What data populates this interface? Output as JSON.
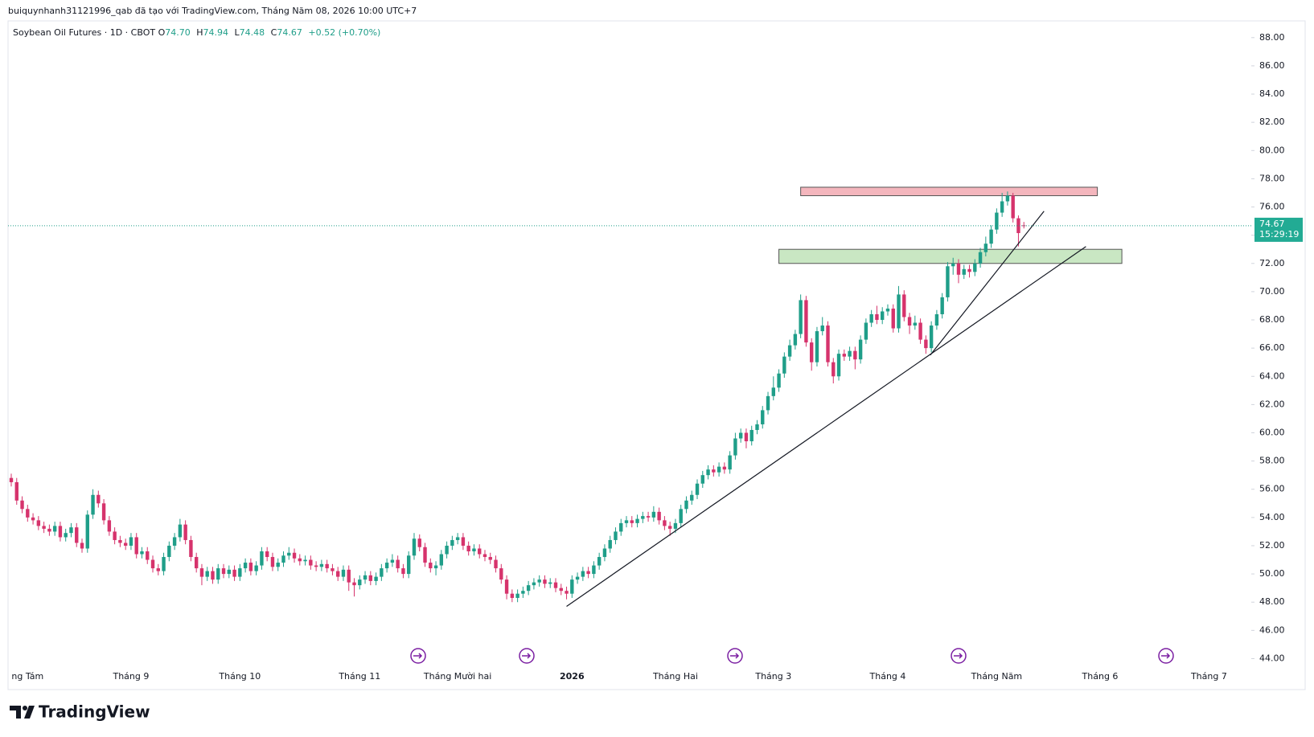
{
  "header": {
    "credit": "buiquynhanh31121996_qab đã tạo với TradingView.com, Tháng Năm 08, 2026 10:00 UTC+7"
  },
  "brand": "TradingView",
  "chart_data": {
    "type": "candlestick",
    "title": "Soybean Oil Futures · 1D · CBOT",
    "ohlc_letters": [
      "O",
      "H",
      "L",
      "C"
    ],
    "legend_values": [
      "74.70",
      "74.94",
      "74.48",
      "74.67"
    ],
    "change_label": "+0.52 (+0.70%)",
    "countdown": "15:29:19",
    "up_color": "#1f9e89",
    "down_color": "#d6336c",
    "ylim": [
      43.4,
      88.9
    ],
    "yticks": [
      {
        "value": 44,
        "label": "44.00"
      },
      {
        "value": 46,
        "label": "46.00"
      },
      {
        "value": 48,
        "label": "48.00"
      },
      {
        "value": 50,
        "label": "50.00"
      },
      {
        "value": 52,
        "label": "52.00"
      },
      {
        "value": 54,
        "label": "54.00"
      },
      {
        "value": 56,
        "label": "56.00"
      },
      {
        "value": 58,
        "label": "58.00"
      },
      {
        "value": 60,
        "label": "60.00"
      },
      {
        "value": 62,
        "label": "62.00"
      },
      {
        "value": 64,
        "label": "64.00"
      },
      {
        "value": 66,
        "label": "66.00"
      },
      {
        "value": 68,
        "label": "68.00"
      },
      {
        "value": 70,
        "label": "70.00"
      },
      {
        "value": 72,
        "label": "72.00"
      },
      {
        "value": 74,
        "label": "74.00"
      },
      {
        "value": 76,
        "label": "76.00"
      },
      {
        "value": 78,
        "label": "78.00"
      },
      {
        "value": 80,
        "label": "80.00"
      },
      {
        "value": 82,
        "label": "82.00"
      },
      {
        "value": 84,
        "label": "84.00"
      },
      {
        "value": 86,
        "label": "86.00"
      },
      {
        "value": 88,
        "label": "88.00"
      }
    ],
    "categories": [
      null,
      null,
      null,
      "ng Tám",
      null,
      null,
      null,
      null,
      null,
      null,
      null,
      null,
      null,
      null,
      null,
      null,
      null,
      null,
      null,
      null,
      null,
      null,
      "Tháng 9",
      null,
      null,
      null,
      null,
      null,
      null,
      null,
      null,
      null,
      null,
      null,
      null,
      null,
      null,
      null,
      null,
      null,
      null,
      null,
      "Tháng 10",
      null,
      null,
      null,
      null,
      null,
      null,
      null,
      null,
      null,
      null,
      null,
      null,
      null,
      null,
      null,
      null,
      null,
      null,
      null,
      null,
      null,
      "Tháng 11",
      null,
      null,
      null,
      null,
      null,
      null,
      null,
      null,
      null,
      null,
      null,
      null,
      null,
      null,
      null,
      null,
      null,
      "Tháng Mười hai",
      null,
      null,
      null,
      null,
      null,
      null,
      null,
      null,
      null,
      null,
      null,
      null,
      null,
      null,
      null,
      null,
      null,
      null,
      null,
      null,
      "2026",
      null,
      null,
      null,
      null,
      null,
      null,
      null,
      null,
      null,
      null,
      null,
      null,
      null,
      null,
      null,
      null,
      null,
      null,
      "Tháng Hai",
      null,
      null,
      null,
      null,
      null,
      null,
      null,
      null,
      null,
      null,
      null,
      null,
      null,
      null,
      null,
      null,
      null,
      "Tháng 3",
      null,
      null,
      null,
      null,
      null,
      null,
      null,
      null,
      null,
      null,
      null,
      null,
      null,
      null,
      null,
      null,
      null,
      null,
      null,
      null,
      "Tháng 4",
      null,
      null,
      null,
      null,
      null,
      null,
      null,
      null,
      null,
      null,
      null,
      null,
      null,
      null,
      null,
      null,
      null,
      null,
      null,
      "Tháng Năm",
      null,
      null,
      null,
      null,
      null,
      null,
      null,
      null,
      null,
      null,
      null,
      null,
      null,
      null,
      null,
      null,
      null,
      null,
      "Tháng 6",
      null,
      null,
      null,
      null,
      null,
      null,
      null,
      null,
      null,
      null,
      null,
      null,
      null,
      null,
      null,
      null,
      null,
      null,
      null,
      "Tháng 7",
      null,
      null,
      null,
      null,
      null,
      null,
      null
    ],
    "candles": [
      [
        56.8,
        57.1,
        56.2,
        56.5
      ],
      [
        56.5,
        56.8,
        54.9,
        55.2
      ],
      [
        55.2,
        55.5,
        54.3,
        54.6
      ],
      [
        54.6,
        54.9,
        53.7,
        54.0
      ],
      [
        54.0,
        54.3,
        53.5,
        53.8
      ],
      [
        53.8,
        54.1,
        53.1,
        53.4
      ],
      [
        53.4,
        53.7,
        52.9,
        53.2
      ],
      [
        53.2,
        53.5,
        52.7,
        53.0
      ],
      [
        53.0,
        53.7,
        52.7,
        53.4
      ],
      [
        53.4,
        53.7,
        52.3,
        52.6
      ],
      [
        52.6,
        53.2,
        52.3,
        52.9
      ],
      [
        52.9,
        53.6,
        52.6,
        53.3
      ],
      [
        53.3,
        53.6,
        51.9,
        52.2
      ],
      [
        52.2,
        52.5,
        51.5,
        51.8
      ],
      [
        51.8,
        54.5,
        51.5,
        54.2
      ],
      [
        54.2,
        56.0,
        53.9,
        55.6
      ],
      [
        55.6,
        55.9,
        54.7,
        55.0
      ],
      [
        55.0,
        55.3,
        53.5,
        53.8
      ],
      [
        53.8,
        54.1,
        52.7,
        53.0
      ],
      [
        53.0,
        53.3,
        52.1,
        52.4
      ],
      [
        52.4,
        52.7,
        51.9,
        52.2
      ],
      [
        52.2,
        52.5,
        51.7,
        52.0
      ],
      [
        52.0,
        52.9,
        51.7,
        52.6
      ],
      [
        52.6,
        52.9,
        51.1,
        51.4
      ],
      [
        51.4,
        51.9,
        51.1,
        51.6
      ],
      [
        51.6,
        51.9,
        50.7,
        51.0
      ],
      [
        51.0,
        51.3,
        50.1,
        50.4
      ],
      [
        50.4,
        50.7,
        49.9,
        50.2
      ],
      [
        50.2,
        51.5,
        49.9,
        51.2
      ],
      [
        51.2,
        52.3,
        50.9,
        52.0
      ],
      [
        52.0,
        52.9,
        51.7,
        52.6
      ],
      [
        52.6,
        53.9,
        52.3,
        53.5
      ],
      [
        53.5,
        53.8,
        52.1,
        52.4
      ],
      [
        52.4,
        52.7,
        50.9,
        51.2
      ],
      [
        51.2,
        51.5,
        50.1,
        50.4
      ],
      [
        50.4,
        50.7,
        49.2,
        49.8
      ],
      [
        49.8,
        50.5,
        49.5,
        50.2
      ],
      [
        50.2,
        50.5,
        49.3,
        49.6
      ],
      [
        49.6,
        50.7,
        49.3,
        50.4
      ],
      [
        50.4,
        50.7,
        49.7,
        50.0
      ],
      [
        50.0,
        50.6,
        49.7,
        50.3
      ],
      [
        50.3,
        50.6,
        49.5,
        49.8
      ],
      [
        49.8,
        50.7,
        49.5,
        50.4
      ],
      [
        50.4,
        51.1,
        50.1,
        50.8
      ],
      [
        50.8,
        51.1,
        49.9,
        50.2
      ],
      [
        50.2,
        50.9,
        49.9,
        50.6
      ],
      [
        50.6,
        51.9,
        50.3,
        51.6
      ],
      [
        51.6,
        51.9,
        50.9,
        51.2
      ],
      [
        51.2,
        51.5,
        50.2,
        50.5
      ],
      [
        50.5,
        51.1,
        50.2,
        50.8
      ],
      [
        50.8,
        51.6,
        50.5,
        51.3
      ],
      [
        51.3,
        51.9,
        51.0,
        51.5
      ],
      [
        51.5,
        51.8,
        50.8,
        51.1
      ],
      [
        51.1,
        51.4,
        50.6,
        50.9
      ],
      [
        50.9,
        51.3,
        50.6,
        51.0
      ],
      [
        51.0,
        51.3,
        50.3,
        50.6
      ],
      [
        50.6,
        50.9,
        50.2,
        50.5
      ],
      [
        50.5,
        51.0,
        50.2,
        50.7
      ],
      [
        50.7,
        51.0,
        50.1,
        50.4
      ],
      [
        50.4,
        50.7,
        49.9,
        50.2
      ],
      [
        50.2,
        50.5,
        49.5,
        49.8
      ],
      [
        49.8,
        50.6,
        49.5,
        50.3
      ],
      [
        50.3,
        50.6,
        48.8,
        49.4
      ],
      [
        49.4,
        49.7,
        48.4,
        49.2
      ],
      [
        49.2,
        49.9,
        48.9,
        49.6
      ],
      [
        49.6,
        50.2,
        49.3,
        49.9
      ],
      [
        49.9,
        50.2,
        49.2,
        49.5
      ],
      [
        49.5,
        50.1,
        49.2,
        49.8
      ],
      [
        49.8,
        50.7,
        49.5,
        50.4
      ],
      [
        50.4,
        51.1,
        50.1,
        50.8
      ],
      [
        50.8,
        51.4,
        50.5,
        51.0
      ],
      [
        51.0,
        51.3,
        50.1,
        50.4
      ],
      [
        50.4,
        50.7,
        49.7,
        50.0
      ],
      [
        50.0,
        51.6,
        49.7,
        51.3
      ],
      [
        51.3,
        52.9,
        51.0,
        52.5
      ],
      [
        52.5,
        52.8,
        51.6,
        51.9
      ],
      [
        51.9,
        52.2,
        50.5,
        50.8
      ],
      [
        50.8,
        51.1,
        50.1,
        50.4
      ],
      [
        50.4,
        50.9,
        49.9,
        50.6
      ],
      [
        50.6,
        51.7,
        50.3,
        51.4
      ],
      [
        51.4,
        52.3,
        51.1,
        52.0
      ],
      [
        52.0,
        52.7,
        51.7,
        52.4
      ],
      [
        52.4,
        52.9,
        52.1,
        52.6
      ],
      [
        52.6,
        52.9,
        51.7,
        52.0
      ],
      [
        52.0,
        52.3,
        51.3,
        51.6
      ],
      [
        51.6,
        52.1,
        51.3,
        51.8
      ],
      [
        51.8,
        52.1,
        51.1,
        51.4
      ],
      [
        51.4,
        51.7,
        50.9,
        51.2
      ],
      [
        51.2,
        51.5,
        50.7,
        51.0
      ],
      [
        51.0,
        51.3,
        50.1,
        50.4
      ],
      [
        50.4,
        50.7,
        49.3,
        49.6
      ],
      [
        49.6,
        49.9,
        48.2,
        48.6
      ],
      [
        48.6,
        48.9,
        48.0,
        48.3
      ],
      [
        48.3,
        48.9,
        48.0,
        48.6
      ],
      [
        48.6,
        49.1,
        48.3,
        48.8
      ],
      [
        48.8,
        49.5,
        48.5,
        49.2
      ],
      [
        49.2,
        49.7,
        48.9,
        49.4
      ],
      [
        49.4,
        49.9,
        49.1,
        49.6
      ],
      [
        49.6,
        49.9,
        49.0,
        49.3
      ],
      [
        49.3,
        49.7,
        49.0,
        49.4
      ],
      [
        49.4,
        49.7,
        48.7,
        49.0
      ],
      [
        49.0,
        49.3,
        48.5,
        48.8
      ],
      [
        48.8,
        49.1,
        48.2,
        48.6
      ],
      [
        48.6,
        49.9,
        48.3,
        49.6
      ],
      [
        49.6,
        50.1,
        49.3,
        49.8
      ],
      [
        49.8,
        50.5,
        49.5,
        50.2
      ],
      [
        50.2,
        50.5,
        49.7,
        50.0
      ],
      [
        50.0,
        50.9,
        49.7,
        50.6
      ],
      [
        50.6,
        51.5,
        50.3,
        51.2
      ],
      [
        51.2,
        52.1,
        50.9,
        51.8
      ],
      [
        51.8,
        52.7,
        51.5,
        52.4
      ],
      [
        52.4,
        53.3,
        52.1,
        53.0
      ],
      [
        53.0,
        53.9,
        52.7,
        53.6
      ],
      [
        53.6,
        54.1,
        53.3,
        53.8
      ],
      [
        53.8,
        54.1,
        53.3,
        53.6
      ],
      [
        53.6,
        54.2,
        53.3,
        53.9
      ],
      [
        53.9,
        54.4,
        53.6,
        54.1
      ],
      [
        54.1,
        54.4,
        53.7,
        54.0
      ],
      [
        54.0,
        54.8,
        53.7,
        54.4
      ],
      [
        54.4,
        54.7,
        53.5,
        53.8
      ],
      [
        53.8,
        54.1,
        53.1,
        53.4
      ],
      [
        53.4,
        53.7,
        52.7,
        53.2
      ],
      [
        53.2,
        53.9,
        52.9,
        53.6
      ],
      [
        53.6,
        54.9,
        53.3,
        54.6
      ],
      [
        54.6,
        55.5,
        54.3,
        55.2
      ],
      [
        55.2,
        55.9,
        54.9,
        55.6
      ],
      [
        55.6,
        56.7,
        55.3,
        56.4
      ],
      [
        56.4,
        57.3,
        56.1,
        57.0
      ],
      [
        57.0,
        57.7,
        56.7,
        57.4
      ],
      [
        57.4,
        57.7,
        56.9,
        57.2
      ],
      [
        57.2,
        57.9,
        56.9,
        57.6
      ],
      [
        57.6,
        57.9,
        57.1,
        57.4
      ],
      [
        57.4,
        58.7,
        57.1,
        58.4
      ],
      [
        58.4,
        60.0,
        58.1,
        59.6
      ],
      [
        59.6,
        60.3,
        59.3,
        60.0
      ],
      [
        60.0,
        60.3,
        58.9,
        59.4
      ],
      [
        59.4,
        60.5,
        59.1,
        60.2
      ],
      [
        60.2,
        60.9,
        59.9,
        60.6
      ],
      [
        60.6,
        61.9,
        60.3,
        61.6
      ],
      [
        61.6,
        62.9,
        61.3,
        62.6
      ],
      [
        62.6,
        64.0,
        62.3,
        63.2
      ],
      [
        63.2,
        64.5,
        62.9,
        64.2
      ],
      [
        64.2,
        65.7,
        63.9,
        65.4
      ],
      [
        65.4,
        66.6,
        65.1,
        66.2
      ],
      [
        66.2,
        67.3,
        65.9,
        67.0
      ],
      [
        67.0,
        69.8,
        66.7,
        69.4
      ],
      [
        69.4,
        69.7,
        66.1,
        66.4
      ],
      [
        66.4,
        66.7,
        64.4,
        65.0
      ],
      [
        65.0,
        67.5,
        64.7,
        67.2
      ],
      [
        67.2,
        68.2,
        66.9,
        67.6
      ],
      [
        67.6,
        67.9,
        64.7,
        65.0
      ],
      [
        65.0,
        65.3,
        63.5,
        64.0
      ],
      [
        64.0,
        65.9,
        63.7,
        65.6
      ],
      [
        65.6,
        65.9,
        65.1,
        65.4
      ],
      [
        65.4,
        66.1,
        65.1,
        65.8
      ],
      [
        65.8,
        66.1,
        64.5,
        65.2
      ],
      [
        65.2,
        66.9,
        64.9,
        66.6
      ],
      [
        66.6,
        68.1,
        66.3,
        67.8
      ],
      [
        67.8,
        68.7,
        67.5,
        68.4
      ],
      [
        68.4,
        69.0,
        67.7,
        68.0
      ],
      [
        68.0,
        68.9,
        67.7,
        68.6
      ],
      [
        68.6,
        69.1,
        68.3,
        68.8
      ],
      [
        68.8,
        69.1,
        67.1,
        67.4
      ],
      [
        67.4,
        70.4,
        67.1,
        69.8
      ],
      [
        69.8,
        70.1,
        67.9,
        68.2
      ],
      [
        68.2,
        68.5,
        67.0,
        67.6
      ],
      [
        67.6,
        68.3,
        67.3,
        67.8
      ],
      [
        67.8,
        68.1,
        66.3,
        66.6
      ],
      [
        66.6,
        66.9,
        65.6,
        66.0
      ],
      [
        66.0,
        67.9,
        65.7,
        67.6
      ],
      [
        67.6,
        68.7,
        67.3,
        68.4
      ],
      [
        68.4,
        69.9,
        68.1,
        69.6
      ],
      [
        69.6,
        72.1,
        69.3,
        71.8
      ],
      [
        71.8,
        72.4,
        71.2,
        72.0
      ],
      [
        72.0,
        72.3,
        70.6,
        71.2
      ],
      [
        71.2,
        71.9,
        70.9,
        71.6
      ],
      [
        71.6,
        71.9,
        71.0,
        71.4
      ],
      [
        71.4,
        72.3,
        71.1,
        72.0
      ],
      [
        72.0,
        73.1,
        71.7,
        72.8
      ],
      [
        72.8,
        73.9,
        72.5,
        73.4
      ],
      [
        73.4,
        74.7,
        73.1,
        74.4
      ],
      [
        74.4,
        75.9,
        74.1,
        75.6
      ],
      [
        75.6,
        77.0,
        75.3,
        76.4
      ],
      [
        76.4,
        77.1,
        76.1,
        76.8
      ],
      [
        76.8,
        77.0,
        74.9,
        75.2
      ],
      [
        75.2,
        75.4,
        73.2,
        74.15
      ],
      [
        74.7,
        74.94,
        74.48,
        74.67
      ],
      null,
      null,
      null,
      null,
      null,
      null,
      null,
      null,
      null,
      null,
      null,
      null,
      null,
      null,
      null,
      null,
      null,
      null,
      null,
      null,
      null,
      null,
      null,
      null,
      null,
      null,
      null,
      null,
      null,
      null,
      null,
      null,
      null,
      null,
      null,
      null,
      null,
      null,
      null,
      null,
      null
    ],
    "zones": [
      {
        "x": [
          145,
          199.5
        ],
        "y": [
          76.8,
          77.4
        ],
        "color": "#f4b6bd"
      },
      {
        "x": [
          141,
          204
        ],
        "y": [
          72.0,
          73.0
        ],
        "color": "#c9e7c3"
      }
    ],
    "trend_lines": [
      {
        "x": [
          102,
          197.4
        ],
        "y": [
          47.7,
          73.2
        ]
      },
      {
        "x": [
          168.8,
          189.7
        ],
        "y": [
          65.5,
          75.7
        ]
      }
    ]
  }
}
